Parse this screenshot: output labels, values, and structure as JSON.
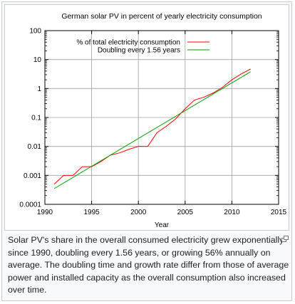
{
  "caption": {
    "text": "Solar PV's share in the overall consumed electricity grew exponentially since 1990, doubling every 1.56 years, or growing 56% annually on average. The doubling time and growth rate differ from those of average power and installed capacity as the overall consumption also increased over time.",
    "magnify_icon": "magnify-clip-icon"
  },
  "chart_data": {
    "type": "line",
    "title": "German solar PV in percent of yearly electricity consumption",
    "xlabel": "Year",
    "ylabel": "",
    "xlim": [
      1990,
      2015
    ],
    "ylim": [
      0.0001,
      100
    ],
    "yscale": "log",
    "grid": true,
    "legend_position": "top-left",
    "x_ticks": [
      "1990",
      "1995",
      "2000",
      "2005",
      "2010",
      "2015"
    ],
    "y_ticks": [
      "0.0001",
      "0.001",
      "0.01",
      "0.1",
      "1",
      "10",
      "100"
    ],
    "series": [
      {
        "name": "% of total electricity consumption",
        "color": "#ff0000",
        "x": [
          1991,
          1992,
          1993,
          1994,
          1995,
          1996,
          1997,
          1998,
          1999,
          2000,
          2001,
          2002,
          2003,
          2004,
          2005,
          2006,
          2007,
          2008,
          2009,
          2010,
          2011,
          2012
        ],
        "y": [
          0.0005,
          0.001,
          0.001,
          0.002,
          0.002,
          0.003,
          0.005,
          0.006,
          0.008,
          0.01,
          0.01,
          0.03,
          0.05,
          0.09,
          0.2,
          0.4,
          0.5,
          0.7,
          1.1,
          2.0,
          3.2,
          4.7
        ]
      },
      {
        "name": "Doubling every 1.56 years",
        "color": "#00a000",
        "x": [
          1991,
          2012
        ],
        "y": [
          0.00035,
          3.8
        ]
      }
    ]
  }
}
